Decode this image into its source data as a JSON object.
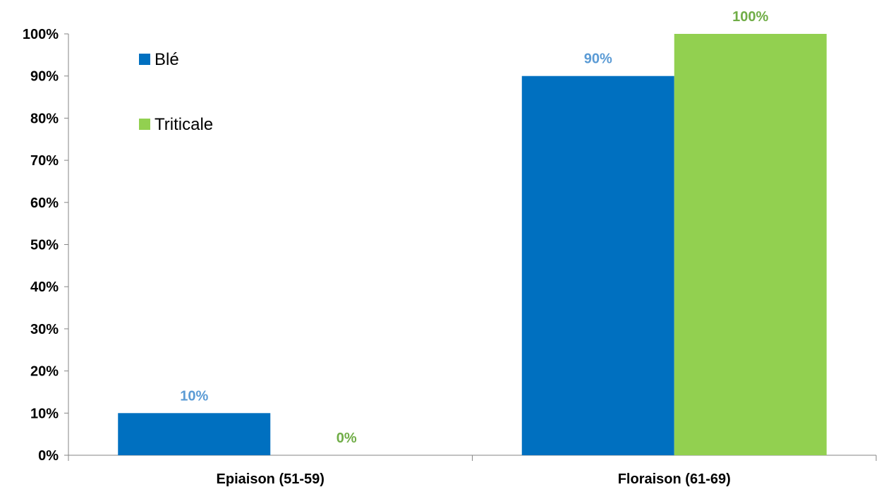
{
  "chart_data": {
    "type": "bar",
    "categories": [
      "Epiaison (51-59)",
      "Floraison (61-69)"
    ],
    "series": [
      {
        "name": "Blé",
        "values": [
          10,
          90
        ],
        "color": "#0070C0",
        "label_color": "#5B9BD5"
      },
      {
        "name": "Triticale",
        "values": [
          0,
          100
        ],
        "color": "#92D050",
        "label_color": "#70AD47"
      }
    ],
    "value_suffix": "%",
    "ylim": [
      0,
      100
    ],
    "yticks": [
      0,
      10,
      20,
      30,
      40,
      50,
      60,
      70,
      80,
      90,
      100
    ],
    "ytick_labels": [
      "0%",
      "10%",
      "20%",
      "30%",
      "40%",
      "50%",
      "60%",
      "70%",
      "80%",
      "90%",
      "100%"
    ],
    "title": "",
    "xlabel": "",
    "ylabel": "",
    "grid": false,
    "legend_position": "top-left"
  }
}
